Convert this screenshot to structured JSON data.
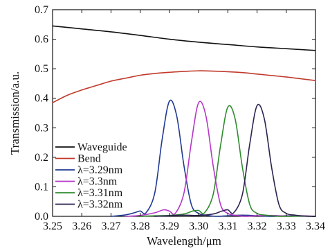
{
  "chart_data": {
    "type": "line",
    "title": "",
    "xlabel": "Wavelength/μm",
    "ylabel": "Transmission/a.u.",
    "xlim": [
      3.25,
      3.34
    ],
    "ylim": [
      0.0,
      0.7
    ],
    "x_ticks": [
      "3.25",
      "3.26",
      "3.27",
      "3.28",
      "3.29",
      "3.30",
      "3.31",
      "3.32",
      "3.33",
      "3.34"
    ],
    "y_ticks": [
      "0.0",
      "0.1",
      "0.2",
      "0.3",
      "0.4",
      "0.5",
      "0.6",
      "0.7"
    ],
    "grid": false,
    "legend_position": "bottom-left",
    "series": [
      {
        "name": "Waveguide",
        "color": "#111111",
        "x": [
          3.25,
          3.26,
          3.27,
          3.28,
          3.29,
          3.3,
          3.31,
          3.32,
          3.33,
          3.34
        ],
        "y": [
          0.645,
          0.635,
          0.625,
          0.613,
          0.6,
          0.59,
          0.582,
          0.574,
          0.568,
          0.562
        ]
      },
      {
        "name": "Bend",
        "color": "#c0392b",
        "x": [
          3.25,
          3.255,
          3.26,
          3.265,
          3.27,
          3.275,
          3.28,
          3.285,
          3.29,
          3.295,
          3.3,
          3.305,
          3.31,
          3.315,
          3.32,
          3.325,
          3.33,
          3.335,
          3.34
        ],
        "y": [
          0.385,
          0.41,
          0.428,
          0.443,
          0.458,
          0.468,
          0.478,
          0.484,
          0.488,
          0.491,
          0.493,
          0.492,
          0.49,
          0.487,
          0.482,
          0.477,
          0.472,
          0.466,
          0.46
        ]
      },
      {
        "name": "λ=3.29nm",
        "color": "#1f3a93",
        "x": [
          3.27,
          3.275,
          3.278,
          3.28,
          3.282,
          3.285,
          3.2875,
          3.29,
          3.2925,
          3.295,
          3.2975,
          3.3,
          3.303,
          3.306,
          3.31,
          3.315,
          3.32,
          3.325,
          3.33,
          3.335,
          3.34
        ],
        "y": [
          0.0,
          0.005,
          0.012,
          0.018,
          0.012,
          0.08,
          0.26,
          0.39,
          0.34,
          0.17,
          0.04,
          0.01,
          0.003,
          0.0,
          0.002,
          0.004,
          0.002,
          0.0,
          0.002,
          0.001,
          0.0
        ]
      },
      {
        "name": "λ=3.3nm",
        "color": "#b536c8",
        "x": [
          3.275,
          3.28,
          3.285,
          3.288,
          3.29,
          3.292,
          3.295,
          3.2975,
          3.3,
          3.3025,
          3.305,
          3.3075,
          3.31,
          3.313,
          3.316,
          3.32,
          3.325,
          3.33,
          3.335,
          3.34
        ],
        "y": [
          0.0,
          0.003,
          0.012,
          0.022,
          0.018,
          0.01,
          0.08,
          0.25,
          0.385,
          0.34,
          0.17,
          0.04,
          0.01,
          0.003,
          0.0,
          0.002,
          0.003,
          0.001,
          0.002,
          0.0
        ]
      },
      {
        "name": "λ=3.31nm",
        "color": "#2e8b2e",
        "x": [
          3.28,
          3.285,
          3.29,
          3.295,
          3.298,
          3.3,
          3.302,
          3.305,
          3.3075,
          3.31,
          3.3125,
          3.315,
          3.3175,
          3.32,
          3.323,
          3.326,
          3.33,
          3.335,
          3.34
        ],
        "y": [
          0.0,
          0.002,
          0.003,
          0.008,
          0.018,
          0.02,
          0.012,
          0.075,
          0.24,
          0.37,
          0.33,
          0.165,
          0.04,
          0.01,
          0.004,
          0.001,
          0.0,
          0.001,
          0.0
        ]
      },
      {
        "name": "λ=3.32nm",
        "color": "#2b2250",
        "x": [
          3.285,
          3.29,
          3.295,
          3.3,
          3.305,
          3.308,
          3.31,
          3.312,
          3.315,
          3.3175,
          3.32,
          3.3225,
          3.325,
          3.3275,
          3.33,
          3.333,
          3.336,
          3.34
        ],
        "y": [
          0.0,
          0.002,
          0.004,
          0.003,
          0.008,
          0.018,
          0.022,
          0.012,
          0.075,
          0.245,
          0.375,
          0.33,
          0.165,
          0.04,
          0.01,
          0.004,
          0.001,
          0.0
        ]
      }
    ]
  }
}
